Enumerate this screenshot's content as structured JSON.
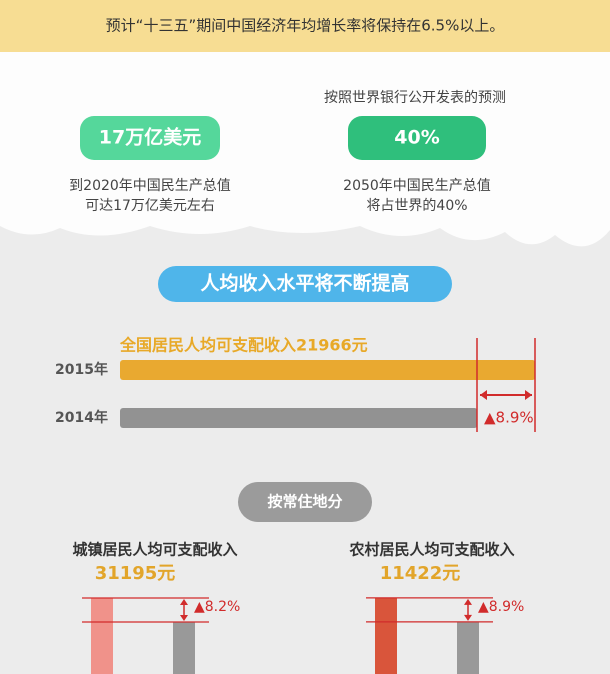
{
  "header": {
    "text": "预计“十三五”期间中国经济年均增长率将保持在6.5%以上。"
  },
  "stats": [
    {
      "badge": "17万亿美元",
      "desc": [
        "到2020年中国民生产总值",
        "可达17万亿美元左右"
      ]
    },
    {
      "note": "按照世界银行公开发表的预测",
      "badge": "40%",
      "desc": [
        "2050年中国民生产总值",
        "将占世界的40%"
      ]
    }
  ],
  "income": {
    "title": "人均收入水平将不断提高",
    "label": "全国居民人均可支配收入21966元",
    "rows": [
      {
        "year": "2015年",
        "value": 21966
      },
      {
        "year": "2014年",
        "value": 20170
      }
    ],
    "growth": "▲8.9%"
  },
  "residence": {
    "title": "按常住地分",
    "groups": [
      {
        "title": "城镇居民人均可支配收入",
        "amount": "31195元",
        "growth": "▲8.2%",
        "values": [
          31195,
          28830
        ]
      },
      {
        "title": "农村居民人均可支配收入",
        "amount": "11422元",
        "growth": "▲8.9%",
        "values": [
          11422,
          10490
        ]
      }
    ]
  }
}
